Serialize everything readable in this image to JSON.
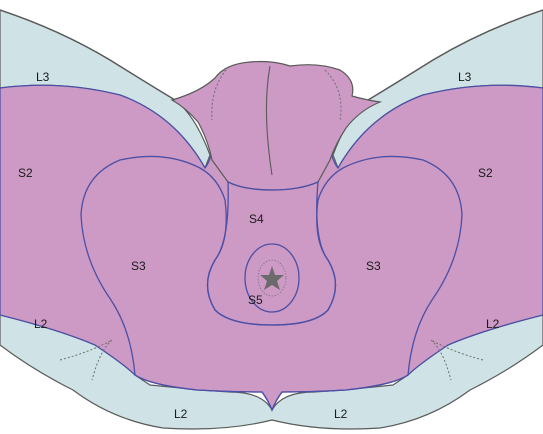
{
  "diagram": {
    "colors": {
      "lumbar_region": "#cfe3e6",
      "sacral_region": "#cc9ac4",
      "outline": "#5a5a5a",
      "dermatome_border": "#4b4fa6",
      "background": "#ffffff"
    },
    "labels": {
      "l3_left": "L3",
      "l3_right": "L3",
      "s2_left": "S2",
      "s2_right": "S2",
      "s3_left": "S3",
      "s3_right": "S3",
      "s4": "S4",
      "s5": "S5",
      "l2_left": "L2",
      "l2_right": "L2",
      "l2_bottom_left": "L2",
      "l2_bottom_right": "L2"
    },
    "icons": {
      "anus_marker": "star-icon"
    }
  }
}
